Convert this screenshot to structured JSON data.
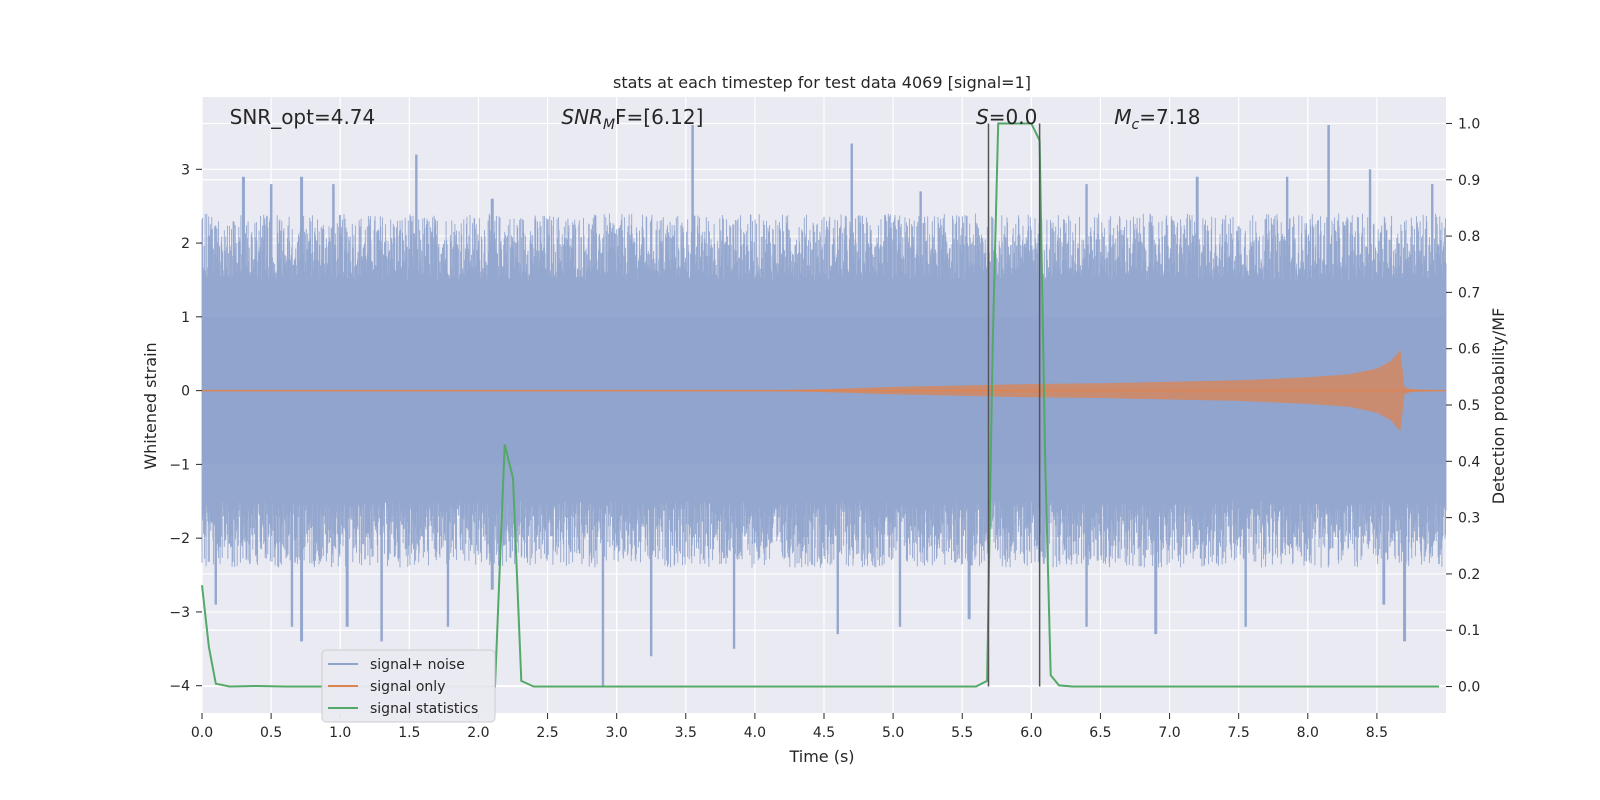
{
  "chart_data": {
    "type": "line",
    "title": "stats at each timestep for test data 4069 [signal=1]",
    "xlabel": "Time (s)",
    "ylabel_left": "Whitened strain",
    "ylabel_right": "Detection probability/MF",
    "xlim": [
      0.0,
      9.0
    ],
    "ylim_left": [
      -4.37,
      3.98
    ],
    "ylim_right": [
      -0.047,
      1.047
    ],
    "x_ticks": [
      "0.0",
      "0.5",
      "1.0",
      "1.5",
      "2.0",
      "2.5",
      "3.0",
      "3.5",
      "4.0",
      "4.5",
      "5.0",
      "5.5",
      "6.0",
      "6.5",
      "7.0",
      "7.5",
      "8.0",
      "8.5"
    ],
    "y_ticks_left": [
      "3",
      "2",
      "1",
      "0",
      "−1",
      "−2",
      "−3",
      "−4"
    ],
    "y_ticks_right": [
      "1.0",
      "0.9",
      "0.8",
      "0.7",
      "0.6",
      "0.5",
      "0.4",
      "0.3",
      "0.2",
      "0.1",
      "0.0"
    ],
    "grid": true,
    "legend_placement": "lower-left",
    "annotations": [
      {
        "text": "SNR_opt=4.74",
        "x": 0.2
      },
      {
        "pre": "SNR",
        "sub": "M",
        "post": "F=[6.12]",
        "italic": true,
        "x": 2.6
      },
      {
        "pre": "S",
        "sub": "",
        "post": "=0.0",
        "italic": true,
        "x": 5.6
      },
      {
        "pre": "M",
        "sub": "c",
        "post": "=7.18",
        "italic": true,
        "x": 6.6
      }
    ],
    "series": [
      {
        "name": "signal+ noise",
        "color": "#8fa3cc",
        "description_level": "noise band roughly ±1.8 with spikes to ±3.6",
        "peaks_high": [
          [
            0.05,
            2.1
          ],
          [
            0.3,
            2.9
          ],
          [
            0.5,
            2.8
          ],
          [
            0.72,
            2.9
          ],
          [
            0.95,
            2.8
          ],
          [
            1.55,
            3.2
          ],
          [
            2.1,
            2.6
          ],
          [
            3.55,
            3.6
          ],
          [
            4.7,
            3.35
          ],
          [
            5.2,
            2.7
          ],
          [
            6.4,
            2.8
          ],
          [
            7.2,
            2.9
          ],
          [
            7.85,
            2.9
          ],
          [
            8.15,
            3.6
          ],
          [
            8.45,
            3.0
          ],
          [
            8.9,
            2.8
          ]
        ],
        "peaks_low": [
          [
            0.1,
            -2.9
          ],
          [
            0.65,
            -3.2
          ],
          [
            0.72,
            -3.4
          ],
          [
            1.05,
            -3.2
          ],
          [
            1.3,
            -3.4
          ],
          [
            1.78,
            -3.2
          ],
          [
            2.1,
            -2.7
          ],
          [
            2.9,
            -4.0
          ],
          [
            3.25,
            -3.6
          ],
          [
            3.85,
            -3.5
          ],
          [
            4.6,
            -3.3
          ],
          [
            5.05,
            -3.2
          ],
          [
            5.55,
            -3.1
          ],
          [
            6.4,
            -3.2
          ],
          [
            6.9,
            -3.3
          ],
          [
            7.55,
            -3.2
          ],
          [
            8.55,
            -2.9
          ],
          [
            8.7,
            -3.4
          ]
        ]
      },
      {
        "name": "signal only",
        "color": "#dd8452",
        "envelope": {
          "x": [
            0.0,
            4.0,
            4.5,
            5.0,
            5.5,
            6.0,
            6.5,
            7.0,
            7.5,
            8.0,
            8.3,
            8.5,
            8.6,
            8.67,
            8.7,
            8.75,
            9.0
          ],
          "amplitude": [
            0.0,
            0.0,
            0.02,
            0.05,
            0.07,
            0.09,
            0.1,
            0.12,
            0.14,
            0.18,
            0.22,
            0.3,
            0.4,
            0.55,
            0.05,
            0.02,
            0.0
          ]
        }
      },
      {
        "name": "signal statistics",
        "color": "#55a868",
        "x": [
          0.0,
          0.05,
          0.1,
          0.2,
          0.4,
          0.6,
          2.0,
          2.12,
          2.19,
          2.25,
          2.31,
          2.4,
          5.6,
          5.68,
          5.72,
          5.76,
          6.0,
          6.06,
          6.1,
          6.14,
          6.2,
          6.3,
          8.95
        ],
        "y": [
          0.18,
          0.07,
          0.005,
          0.0,
          0.001,
          0.0,
          0.0,
          0.0,
          0.43,
          0.37,
          0.01,
          0.0,
          0.0,
          0.01,
          0.6,
          1.0,
          1.0,
          0.97,
          0.4,
          0.02,
          0.002,
          0.0,
          0.0
        ]
      }
    ],
    "markers": [
      {
        "x": 5.69,
        "y0": 0.0,
        "y1": 1.0,
        "color": "#555555"
      },
      {
        "x": 6.06,
        "y0": 0.0,
        "y1": 1.0,
        "color": "#555555"
      }
    ]
  }
}
